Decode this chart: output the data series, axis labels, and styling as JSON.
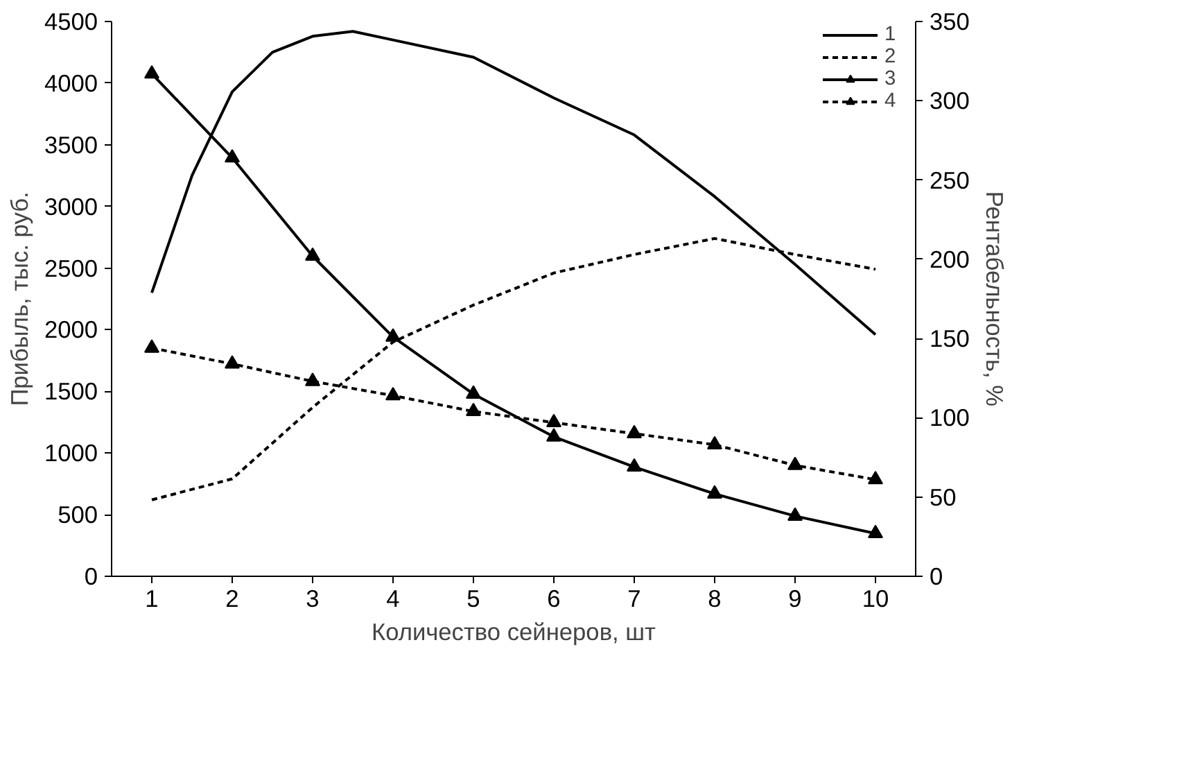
{
  "chart_data": {
    "type": "line",
    "xlabel": "Количество сейнеров, шт",
    "ylabel": "Прибыль, тыс. руб.",
    "y2label": "Рентабельность, %",
    "xlim": [
      0.5,
      10.5
    ],
    "xticks": [
      1,
      2,
      3,
      4,
      5,
      6,
      7,
      8,
      9,
      10
    ],
    "ylim": [
      0,
      4500
    ],
    "yticks": [
      0,
      500,
      1000,
      1500,
      2000,
      2500,
      3000,
      3500,
      4000,
      4500
    ],
    "y2lim": [
      0,
      350
    ],
    "y2ticks": [
      0,
      50,
      100,
      150,
      200,
      250,
      300,
      350
    ],
    "grid": false,
    "legend": "top right",
    "series": [
      {
        "name": "1",
        "color": "#000000",
        "line_style": "solid",
        "marker": "none",
        "x": [
          1,
          1.5,
          2,
          2.5,
          3,
          3.5,
          4,
          5,
          6,
          7,
          8,
          9,
          10
        ],
        "values": [
          2300,
          3250,
          3930,
          4250,
          4380,
          4420,
          4350,
          4210,
          3880,
          3580,
          3080,
          2530,
          1960
        ]
      },
      {
        "name": "2",
        "color": "#000000",
        "line_style": "dashed",
        "marker": "none",
        "x": [
          1,
          2,
          3,
          4,
          5,
          6,
          7,
          8,
          9,
          10
        ],
        "values": [
          620,
          790,
          1370,
          1900,
          2200,
          2460,
          2610,
          2740,
          2610,
          2490
        ]
      },
      {
        "name": "3",
        "color": "#000000",
        "line_style": "solid",
        "marker": "triangle",
        "axis": "y2",
        "x": [
          1,
          2,
          3,
          4,
          5,
          6,
          7,
          8,
          9,
          10
        ],
        "values": [
          317,
          264,
          202,
          151,
          115,
          88,
          69,
          52,
          38,
          27
        ]
      },
      {
        "name": "4",
        "color": "#000000",
        "line_style": "dashed",
        "marker": "triangle",
        "axis": "y2",
        "x": [
          1,
          2,
          3,
          4,
          5,
          6,
          7,
          8,
          9,
          10
        ],
        "values": [
          144,
          134,
          123,
          114,
          104,
          97,
          90,
          83,
          70,
          61
        ]
      }
    ]
  }
}
